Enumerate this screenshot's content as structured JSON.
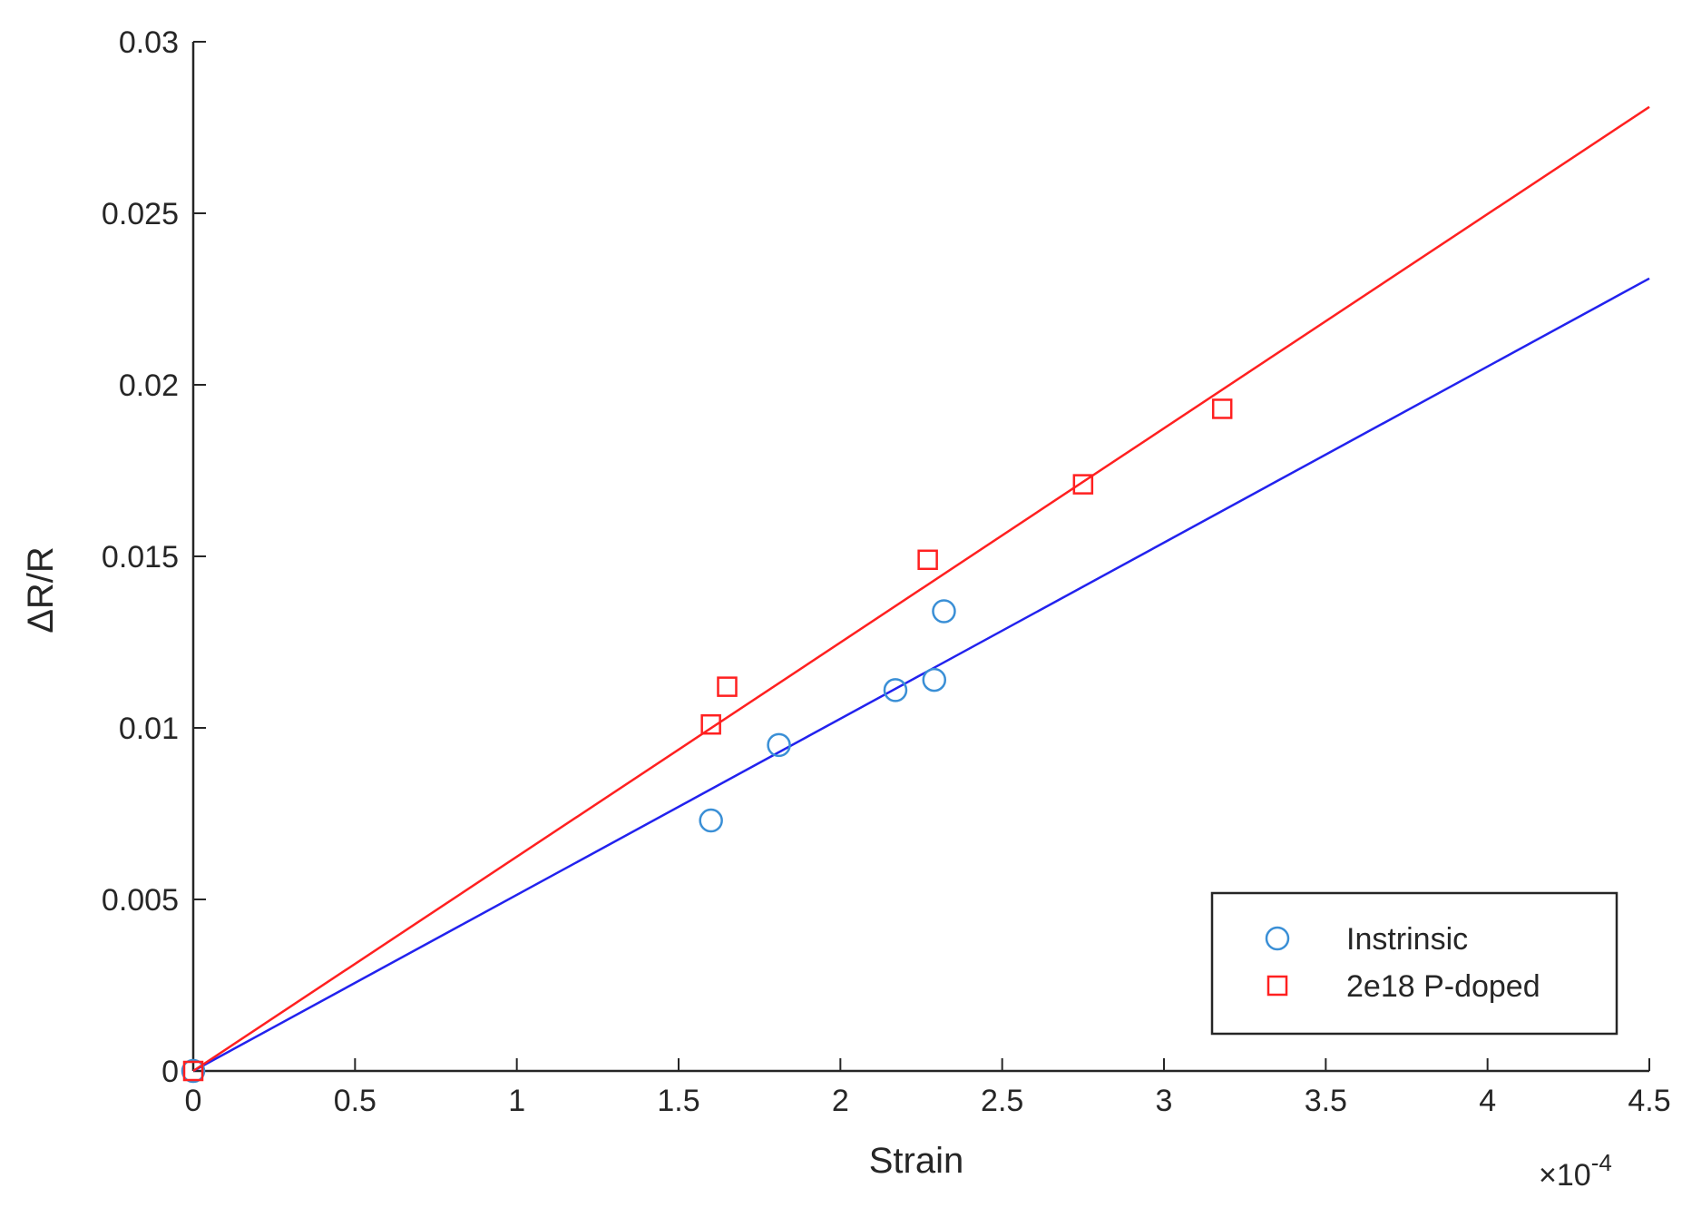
{
  "chart_data": {
    "type": "scatter",
    "xlabel": "Strain",
    "ylabel": "ΔR/R",
    "x_exponent_label": "×10",
    "x_exponent_power": "-4",
    "xlim": [
      0,
      4.5
    ],
    "ylim": [
      0,
      0.03
    ],
    "x_ticks": [
      "0",
      "0.5",
      "1",
      "1.5",
      "2",
      "2.5",
      "3",
      "3.5",
      "4",
      "4.5"
    ],
    "y_ticks": [
      "0",
      "0.005",
      "0.01",
      "0.015",
      "0.02",
      "0.025",
      "0.03"
    ],
    "grid": false,
    "legend_position": "bottom-right",
    "series": [
      {
        "name": "Instrinsic",
        "marker": "circle",
        "color": "#3a8fd6",
        "points": [
          [
            0,
            0
          ],
          [
            1.6,
            0.0073
          ],
          [
            1.81,
            0.0095
          ],
          [
            2.17,
            0.0111
          ],
          [
            2.29,
            0.0114
          ],
          [
            2.32,
            0.0134
          ]
        ]
      },
      {
        "name": "2e18 P-doped",
        "marker": "square",
        "color": "#ff2020",
        "points": [
          [
            0,
            0
          ],
          [
            1.6,
            0.0101
          ],
          [
            1.65,
            0.0112
          ],
          [
            2.27,
            0.0149
          ],
          [
            2.75,
            0.0171
          ],
          [
            3.18,
            0.0193
          ]
        ]
      }
    ],
    "fit_lines": [
      {
        "color": "#2222ee",
        "from": [
          0,
          0
        ],
        "to": [
          4.5,
          0.0231
        ]
      },
      {
        "color": "#ff2020",
        "from": [
          0,
          0
        ],
        "to": [
          4.5,
          0.0281
        ]
      }
    ]
  }
}
